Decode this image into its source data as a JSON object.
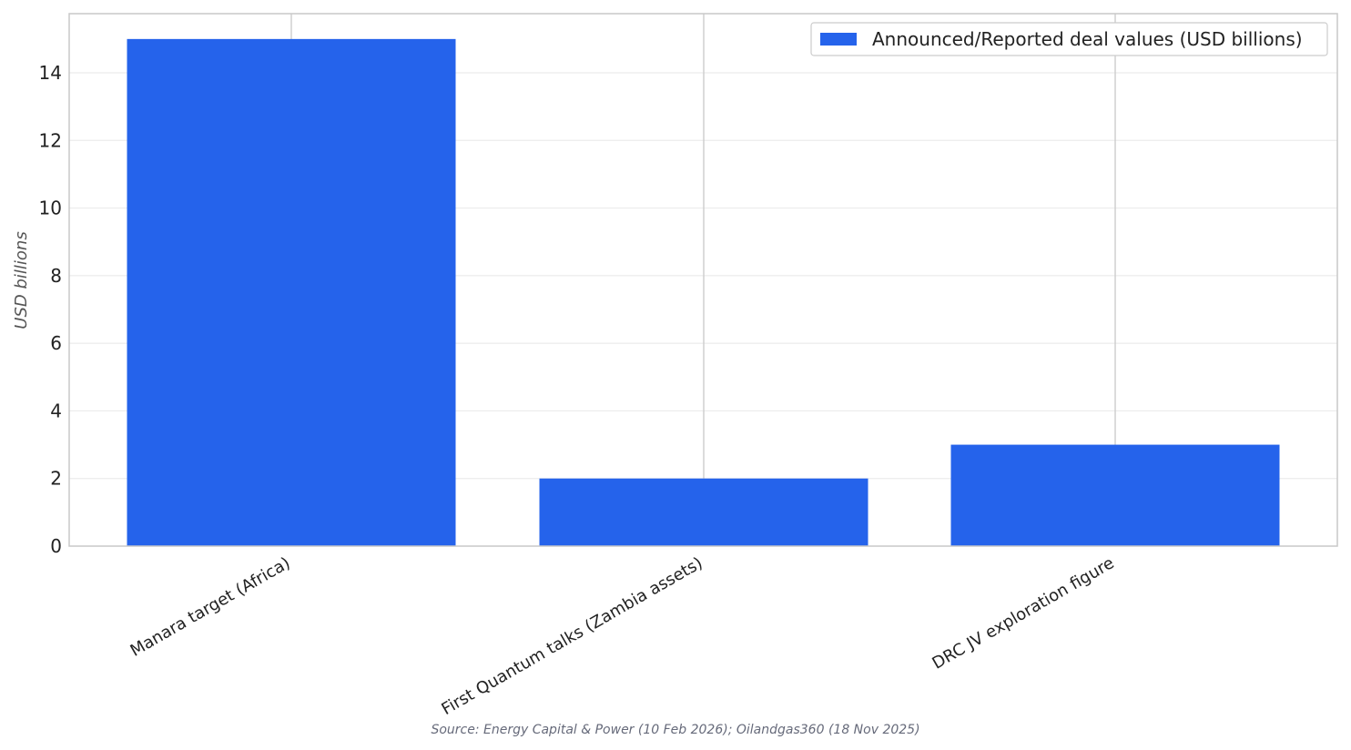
{
  "chart_data": {
    "type": "bar",
    "categories": [
      "Manara target (Africa)",
      "First Quantum talks (Zambia assets)",
      "DRC JV exploration figure"
    ],
    "series": [
      {
        "name": "Announced/Reported deal values (USD billions)",
        "values": [
          15,
          2,
          3
        ]
      }
    ],
    "ylabel": "USD billions",
    "ylim": [
      0,
      15.75
    ],
    "yticks": [
      0,
      2,
      4,
      6,
      8,
      10,
      12,
      14
    ],
    "grid": true,
    "legend": "top-right",
    "colors": {
      "bar": "#2563eb",
      "grid": "#ececec",
      "spine": "#c8c8c8"
    }
  },
  "source_note": "Source: Energy Capital & Power (10 Feb 2026); Oilandgas360 (18 Nov 2025)"
}
